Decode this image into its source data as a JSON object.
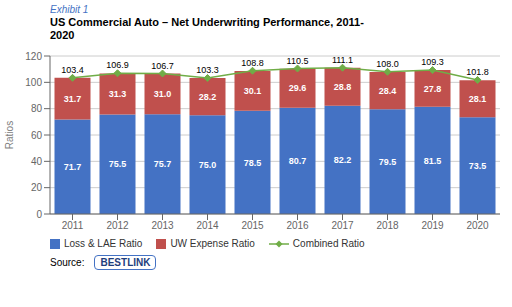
{
  "chart_data": {
    "type": "bar",
    "subtitle": "Exhibit 1",
    "title": "US Commercial Auto – Net Underwriting Performance, 2011-\n2020",
    "ylabel": "Ratios",
    "categories": [
      "2011",
      "2012",
      "2013",
      "2014",
      "2015",
      "2016",
      "2017",
      "2018",
      "2019",
      "2020"
    ],
    "series": [
      {
        "name": "Loss & LAE Ratio",
        "type": "bar",
        "color": "#4472C4",
        "values": [
          71.7,
          75.5,
          75.7,
          75.0,
          78.5,
          80.7,
          82.2,
          79.5,
          81.5,
          73.5
        ],
        "value_labels": [
          "71.7",
          "75.5",
          "75.7",
          "75.0",
          "78.5",
          "80.7",
          "82.2",
          "79.5",
          "81.5",
          "73.5"
        ]
      },
      {
        "name": "UW Expense Ratio",
        "type": "bar",
        "color": "#C0504D",
        "values": [
          31.7,
          31.3,
          31.0,
          28.2,
          30.1,
          29.6,
          28.8,
          28.4,
          27.8,
          28.1
        ],
        "value_labels": [
          "31.7",
          "31.3",
          "31.0",
          "28.2",
          "30.1",
          "29.6",
          "28.8",
          "28.4",
          "27.8",
          "28.1"
        ]
      },
      {
        "name": "Combined Ratio",
        "type": "line",
        "marker": "diamond",
        "color": "#70AD47",
        "values": [
          103.4,
          106.9,
          106.7,
          103.3,
          108.8,
          110.5,
          111.1,
          108.0,
          109.3,
          101.8
        ],
        "value_labels": [
          "103.4",
          "106.9",
          "106.7",
          "103.3",
          "108.8",
          "110.5",
          "111.1",
          "108.0",
          "109.3",
          "101.8"
        ]
      }
    ],
    "stacked": true,
    "data_labels": true,
    "grid": true,
    "legend": "bottom",
    "ylim": [
      0,
      120
    ],
    "yticks": [
      0,
      20,
      40,
      60,
      80,
      100,
      120
    ],
    "annotations": [
      "Source:",
      "BESTLINK"
    ]
  }
}
